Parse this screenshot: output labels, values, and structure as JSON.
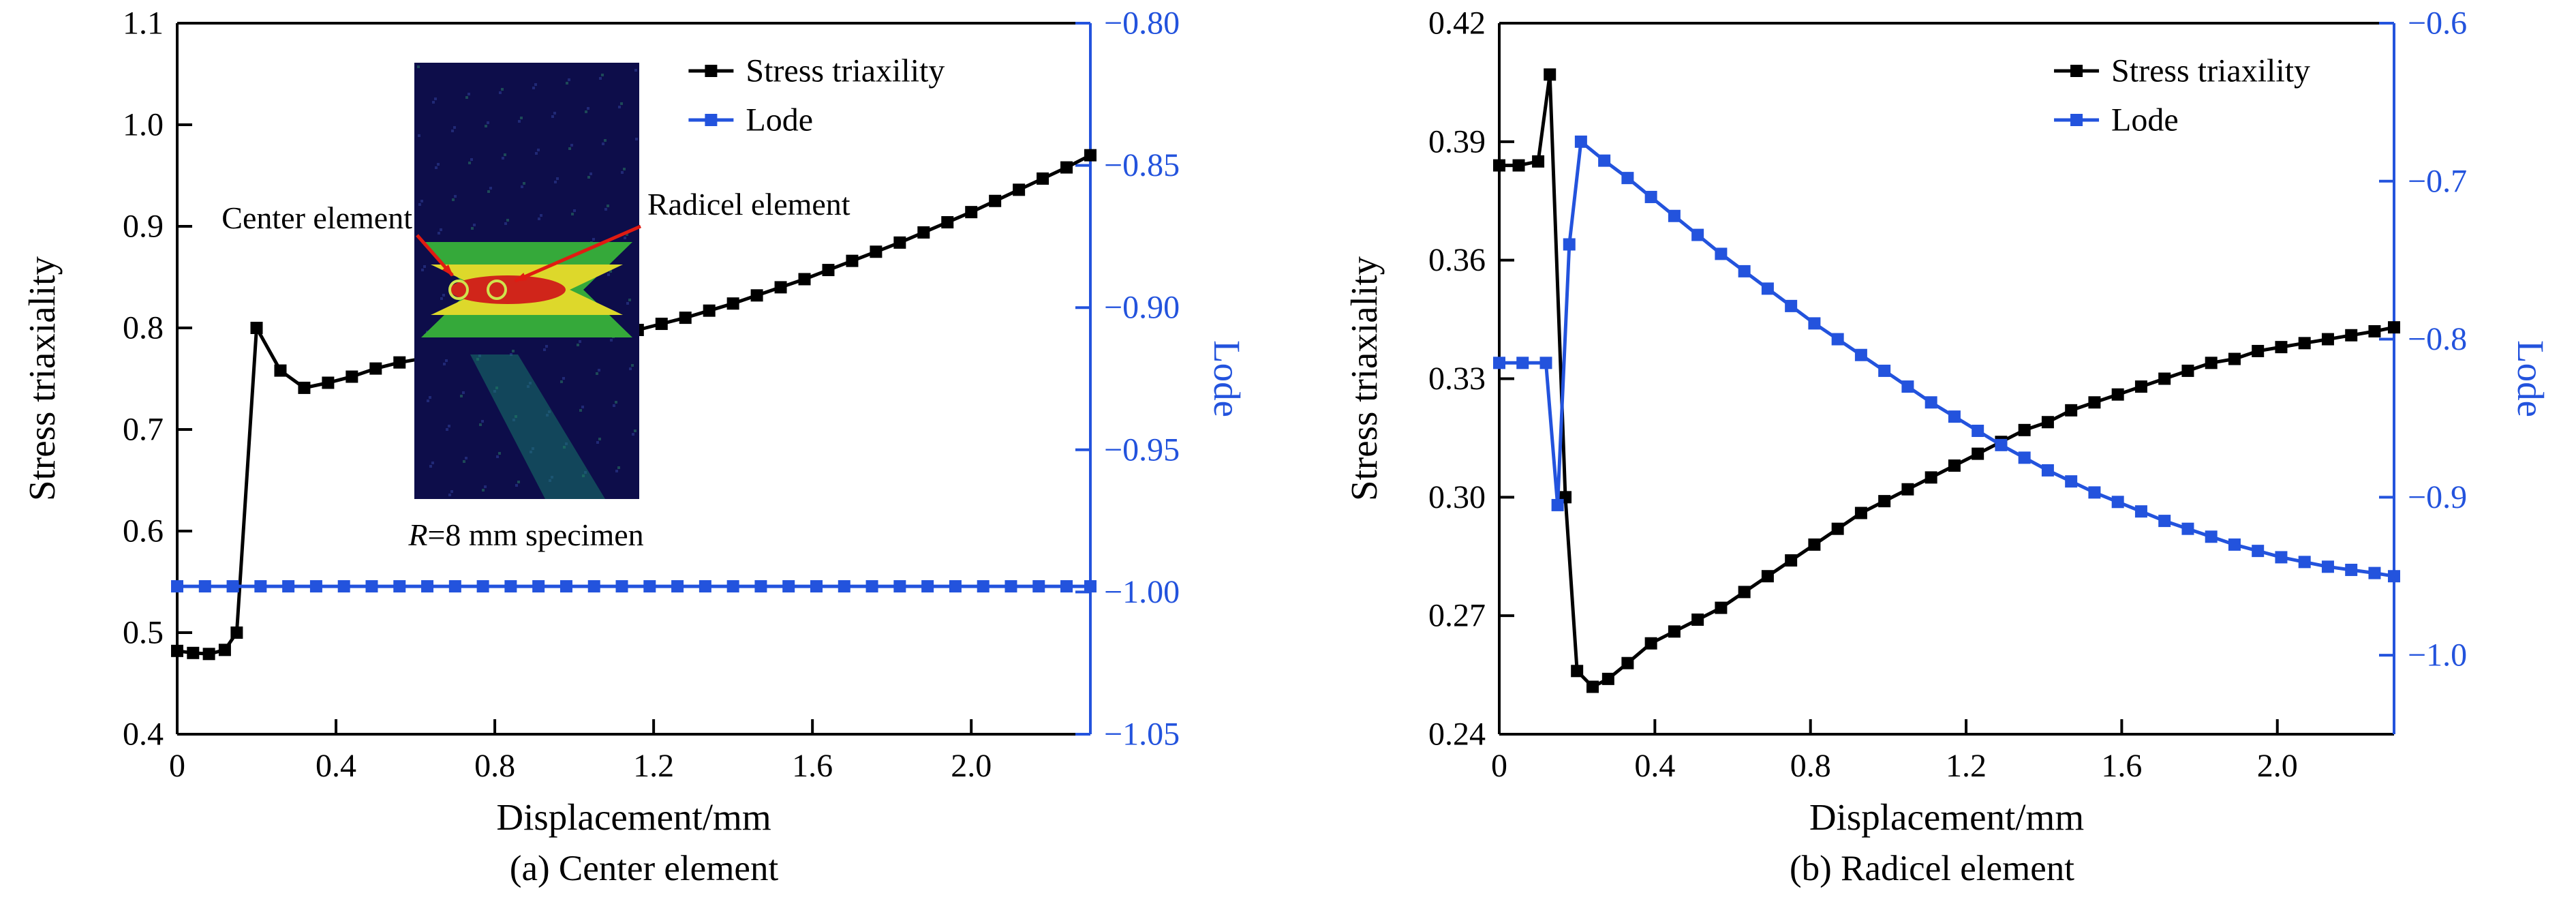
{
  "colors": {
    "series_black": "#000000",
    "series_blue": "#2353dd",
    "arrow_red": "#e01b12",
    "specimen_navy": "#0d0d4a",
    "contour_green": "#35a93a",
    "contour_yellow": "#ddd82b",
    "contour_red": "#d0251a",
    "element_circle": "#cfe34d"
  },
  "chart_data": [
    {
      "type": "line",
      "caption": "(a) Center element",
      "xlabel": "Displacement/mm",
      "x_range": [
        0,
        2.3
      ],
      "x_ticks": [
        {
          "v": 0,
          "label": "0"
        },
        {
          "v": 0.4,
          "label": "0.4"
        },
        {
          "v": 0.8,
          "label": "0.8"
        },
        {
          "v": 1.2,
          "label": "1.2"
        },
        {
          "v": 1.6,
          "label": "1.6"
        },
        {
          "v": 2.0,
          "label": "2.0"
        }
      ],
      "left_axis": {
        "label": "Stress triaxiality",
        "color": "#000000",
        "range": [
          0.4,
          1.1
        ],
        "ticks": [
          {
            "v": 0.4,
            "label": "0.4"
          },
          {
            "v": 0.5,
            "label": "0.5"
          },
          {
            "v": 0.6,
            "label": "0.6"
          },
          {
            "v": 0.7,
            "label": "0.7"
          },
          {
            "v": 0.8,
            "label": "0.8"
          },
          {
            "v": 0.9,
            "label": "0.9"
          },
          {
            "v": 1.0,
            "label": "1.0"
          },
          {
            "v": 1.1,
            "label": "1.1"
          }
        ]
      },
      "right_axis": {
        "label": "Lode",
        "color": "#2353dd",
        "range": [
          -1.05,
          -0.8
        ],
        "ticks": [
          {
            "v": -0.8,
            "label": "−0.80"
          },
          {
            "v": -0.85,
            "label": "−0.85"
          },
          {
            "v": -0.9,
            "label": "−0.90"
          },
          {
            "v": -0.95,
            "label": "−0.95"
          },
          {
            "v": -1.0,
            "label": "−1.00"
          },
          {
            "v": -1.05,
            "label": "−1.05"
          }
        ]
      },
      "legend": [
        "Stress triaxility",
        "Lode"
      ],
      "series": [
        {
          "name": "Stress triaxility",
          "axis": "left",
          "color": "#000000",
          "marker": "square",
          "points": [
            [
              0,
              0.482
            ],
            [
              0.04,
              0.48
            ],
            [
              0.08,
              0.479
            ],
            [
              0.12,
              0.483
            ],
            [
              0.15,
              0.5
            ],
            [
              0.2,
              0.8
            ],
            [
              0.26,
              0.758
            ],
            [
              0.32,
              0.741
            ],
            [
              0.38,
              0.746
            ],
            [
              0.44,
              0.752
            ],
            [
              0.5,
              0.76
            ],
            [
              0.56,
              0.766
            ],
            [
              0.62,
              0.77
            ],
            [
              0.68,
              0.772
            ],
            [
              0.74,
              0.774
            ],
            [
              0.8,
              0.775
            ],
            [
              0.86,
              0.777
            ],
            [
              0.92,
              0.78
            ],
            [
              0.98,
              0.784
            ],
            [
              1.04,
              0.788
            ],
            [
              1.1,
              0.793
            ],
            [
              1.16,
              0.798
            ],
            [
              1.22,
              0.804
            ],
            [
              1.28,
              0.81
            ],
            [
              1.34,
              0.817
            ],
            [
              1.4,
              0.824
            ],
            [
              1.46,
              0.832
            ],
            [
              1.52,
              0.84
            ],
            [
              1.58,
              0.848
            ],
            [
              1.64,
              0.857
            ],
            [
              1.7,
              0.866
            ],
            [
              1.76,
              0.875
            ],
            [
              1.82,
              0.884
            ],
            [
              1.88,
              0.894
            ],
            [
              1.94,
              0.904
            ],
            [
              2.0,
              0.914
            ],
            [
              2.06,
              0.925
            ],
            [
              2.12,
              0.936
            ],
            [
              2.18,
              0.947
            ],
            [
              2.24,
              0.958
            ],
            [
              2.3,
              0.97
            ]
          ]
        },
        {
          "name": "Lode",
          "axis": "right",
          "color": "#2353dd",
          "marker": "square",
          "points": [
            [
              0,
              -0.998
            ],
            [
              0.07,
              -0.998
            ],
            [
              0.14,
              -0.998
            ],
            [
              0.21,
              -0.998
            ],
            [
              0.28,
              -0.998
            ],
            [
              0.35,
              -0.998
            ],
            [
              0.42,
              -0.998
            ],
            [
              0.49,
              -0.998
            ],
            [
              0.56,
              -0.998
            ],
            [
              0.63,
              -0.998
            ],
            [
              0.7,
              -0.998
            ],
            [
              0.77,
              -0.998
            ],
            [
              0.84,
              -0.998
            ],
            [
              0.91,
              -0.998
            ],
            [
              0.98,
              -0.998
            ],
            [
              1.05,
              -0.998
            ],
            [
              1.12,
              -0.998
            ],
            [
              1.19,
              -0.998
            ],
            [
              1.26,
              -0.998
            ],
            [
              1.33,
              -0.998
            ],
            [
              1.4,
              -0.998
            ],
            [
              1.47,
              -0.998
            ],
            [
              1.54,
              -0.998
            ],
            [
              1.61,
              -0.998
            ],
            [
              1.68,
              -0.998
            ],
            [
              1.75,
              -0.998
            ],
            [
              1.82,
              -0.998
            ],
            [
              1.89,
              -0.998
            ],
            [
              1.96,
              -0.998
            ],
            [
              2.03,
              -0.998
            ],
            [
              2.1,
              -0.998
            ],
            [
              2.17,
              -0.998
            ],
            [
              2.24,
              -0.998
            ],
            [
              2.3,
              -0.998
            ]
          ]
        }
      ],
      "inset": {
        "annotation_left": "Center element",
        "annotation_right": "Radicel element",
        "caption_italic": "R",
        "caption_rest": "=8 mm specimen"
      }
    },
    {
      "type": "line",
      "caption": "(b) Radicel element",
      "xlabel": "Displacement/mm",
      "x_range": [
        0,
        2.3
      ],
      "x_ticks": [
        {
          "v": 0,
          "label": "0"
        },
        {
          "v": 0.4,
          "label": "0.4"
        },
        {
          "v": 0.8,
          "label": "0.8"
        },
        {
          "v": 1.2,
          "label": "1.2"
        },
        {
          "v": 1.6,
          "label": "1.6"
        },
        {
          "v": 2.0,
          "label": "2.0"
        }
      ],
      "left_axis": {
        "label": "Stress triaxiality",
        "color": "#000000",
        "range": [
          0.24,
          0.42
        ],
        "ticks": [
          {
            "v": 0.24,
            "label": "0.24"
          },
          {
            "v": 0.27,
            "label": "0.27"
          },
          {
            "v": 0.3,
            "label": "0.30"
          },
          {
            "v": 0.33,
            "label": "0.33"
          },
          {
            "v": 0.36,
            "label": "0.36"
          },
          {
            "v": 0.39,
            "label": "0.39"
          },
          {
            "v": 0.42,
            "label": "0.42"
          }
        ]
      },
      "right_axis": {
        "label": "Lode",
        "color": "#2353dd",
        "range": [
          -1.05,
          -0.6
        ],
        "ticks": [
          {
            "v": -0.6,
            "label": "−0.6"
          },
          {
            "v": -0.7,
            "label": "−0.7"
          },
          {
            "v": -0.8,
            "label": "−0.8"
          },
          {
            "v": -0.9,
            "label": "−0.9"
          },
          {
            "v": -1.0,
            "label": "−1.0"
          }
        ]
      },
      "legend": [
        "Stress triaxility",
        "Lode"
      ],
      "series": [
        {
          "name": "Stress triaxility",
          "axis": "left",
          "color": "#000000",
          "marker": "square",
          "points": [
            [
              0,
              0.384
            ],
            [
              0.05,
              0.384
            ],
            [
              0.1,
              0.385
            ],
            [
              0.13,
              0.407
            ],
            [
              0.17,
              0.3
            ],
            [
              0.2,
              0.256
            ],
            [
              0.24,
              0.252
            ],
            [
              0.28,
              0.254
            ],
            [
              0.33,
              0.258
            ],
            [
              0.39,
              0.263
            ],
            [
              0.45,
              0.266
            ],
            [
              0.51,
              0.269
            ],
            [
              0.57,
              0.272
            ],
            [
              0.63,
              0.276
            ],
            [
              0.69,
              0.28
            ],
            [
              0.75,
              0.284
            ],
            [
              0.81,
              0.288
            ],
            [
              0.87,
              0.292
            ],
            [
              0.93,
              0.296
            ],
            [
              0.99,
              0.299
            ],
            [
              1.05,
              0.302
            ],
            [
              1.11,
              0.305
            ],
            [
              1.17,
              0.308
            ],
            [
              1.23,
              0.311
            ],
            [
              1.29,
              0.314
            ],
            [
              1.35,
              0.317
            ],
            [
              1.41,
              0.319
            ],
            [
              1.47,
              0.322
            ],
            [
              1.53,
              0.324
            ],
            [
              1.59,
              0.326
            ],
            [
              1.65,
              0.328
            ],
            [
              1.71,
              0.33
            ],
            [
              1.77,
              0.332
            ],
            [
              1.83,
              0.334
            ],
            [
              1.89,
              0.335
            ],
            [
              1.95,
              0.337
            ],
            [
              2.01,
              0.338
            ],
            [
              2.07,
              0.339
            ],
            [
              2.13,
              0.34
            ],
            [
              2.19,
              0.341
            ],
            [
              2.25,
              0.342
            ],
            [
              2.3,
              0.343
            ]
          ]
        },
        {
          "name": "Lode",
          "axis": "right",
          "color": "#2353dd",
          "marker": "square",
          "points": [
            [
              0,
              -0.815
            ],
            [
              0.06,
              -0.815
            ],
            [
              0.12,
              -0.815
            ],
            [
              0.15,
              -0.905
            ],
            [
              0.18,
              -0.74
            ],
            [
              0.21,
              -0.675
            ],
            [
              0.27,
              -0.687
            ],
            [
              0.33,
              -0.698
            ],
            [
              0.39,
              -0.71
            ],
            [
              0.45,
              -0.722
            ],
            [
              0.51,
              -0.734
            ],
            [
              0.57,
              -0.746
            ],
            [
              0.63,
              -0.757
            ],
            [
              0.69,
              -0.768
            ],
            [
              0.75,
              -0.779
            ],
            [
              0.81,
              -0.79
            ],
            [
              0.87,
              -0.8
            ],
            [
              0.93,
              -0.81
            ],
            [
              0.99,
              -0.82
            ],
            [
              1.05,
              -0.83
            ],
            [
              1.11,
              -0.84
            ],
            [
              1.17,
              -0.849
            ],
            [
              1.23,
              -0.858
            ],
            [
              1.29,
              -0.867
            ],
            [
              1.35,
              -0.875
            ],
            [
              1.41,
              -0.883
            ],
            [
              1.47,
              -0.89
            ],
            [
              1.53,
              -0.897
            ],
            [
              1.59,
              -0.903
            ],
            [
              1.65,
              -0.909
            ],
            [
              1.71,
              -0.915
            ],
            [
              1.77,
              -0.92
            ],
            [
              1.83,
              -0.925
            ],
            [
              1.89,
              -0.93
            ],
            [
              1.95,
              -0.934
            ],
            [
              2.01,
              -0.938
            ],
            [
              2.07,
              -0.941
            ],
            [
              2.13,
              -0.944
            ],
            [
              2.19,
              -0.946
            ],
            [
              2.25,
              -0.948
            ],
            [
              2.3,
              -0.95
            ]
          ]
        }
      ]
    }
  ]
}
